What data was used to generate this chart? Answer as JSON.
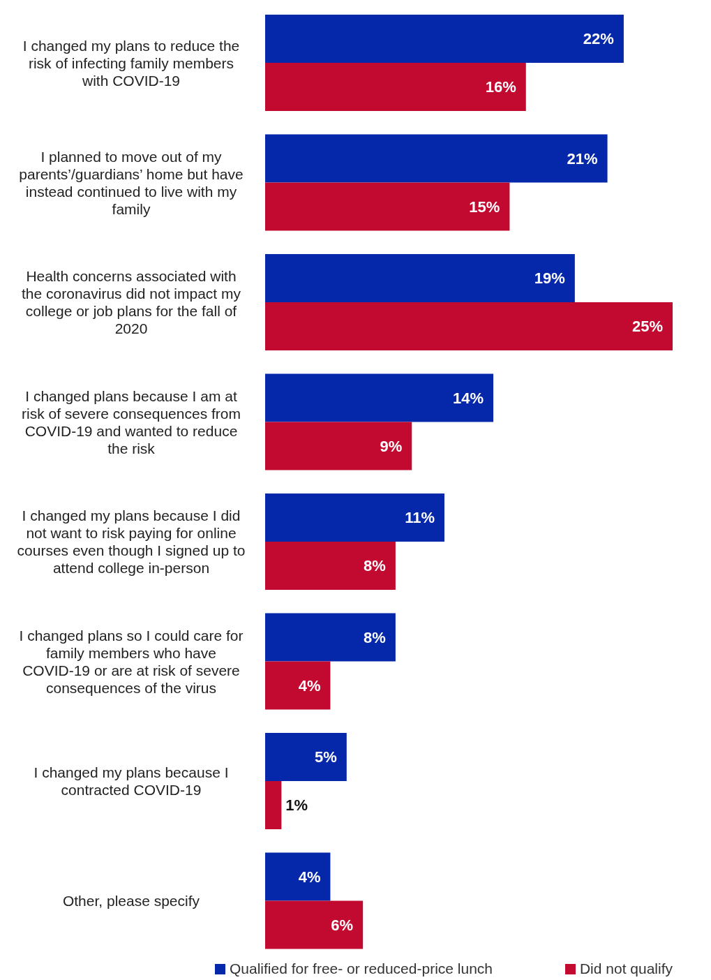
{
  "chart_data": {
    "type": "bar",
    "orientation": "horizontal",
    "legend": "bottom",
    "categories": [
      "I changed my plans to reduce the risk of infecting family members with COVID-19",
      "I planned to move out of my parents’/guardians’ home but have instead continued to live with my family",
      "Health concerns associated with the coronavirus did not impact my college or job plans for the fall of 2020",
      "I changed plans because I am at risk of severe consequences from COVID-19 and wanted to reduce the risk",
      "I changed my plans because I did not want to risk paying for online courses even though I signed up to attend college in-person",
      "I changed plans so I could care for family members who have COVID-19 or are at risk of severe consequences of the virus",
      "I changed my plans because I contracted COVID-19",
      "Other, please specify"
    ],
    "series": [
      {
        "name": "Qualified for free- or reduced-price lunch",
        "color": "#0527a9",
        "values": [
          22,
          21,
          19,
          14,
          11,
          8,
          5,
          4
        ],
        "value_labels": [
          "22%",
          "21%",
          "19%",
          "14%",
          "11%",
          "8%",
          "5%",
          "4%"
        ]
      },
      {
        "name": "Did not qualify",
        "color": "#c20a31",
        "values": [
          16,
          15,
          25,
          9,
          8,
          4,
          1,
          6
        ],
        "value_labels": [
          "16%",
          "15%",
          "25%",
          "9%",
          "8%",
          "4%",
          "1%",
          "6%"
        ]
      }
    ]
  }
}
